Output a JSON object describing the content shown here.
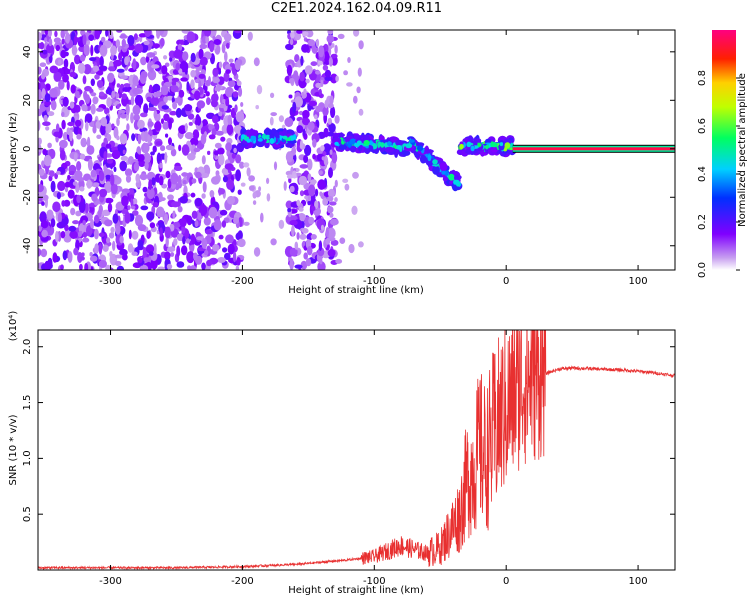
{
  "title": "C2E1.2024.162.04.09.R11",
  "chart_data": [
    {
      "type": "heatmap",
      "name": "spectrogram",
      "xlabel": "Height of straight line (km)",
      "ylabel": "Frequency (Hz)",
      "xlim": [
        -355,
        128
      ],
      "ylim": [
        -50,
        49
      ],
      "xticks": [
        -300,
        -200,
        -100,
        0,
        100
      ],
      "yticks": [
        -40,
        -20,
        0,
        20,
        40
      ],
      "colorbar": {
        "label": "Normalized spectral amplitude",
        "range": [
          0,
          1
        ],
        "ticks": [
          "0.0",
          "0.2",
          "0.4",
          "0.6",
          "0.8"
        ],
        "colormap": [
          "#ffffff",
          "#c8a0f0",
          "#8000ff",
          "#0030ff",
          "#00d0ff",
          "#00ff60",
          "#c0ff00",
          "#ffd000",
          "#ff2000",
          "#ff0080"
        ]
      },
      "features": [
        {
          "region": "noise",
          "x": [
            -355,
            -200
          ],
          "y": [
            -50,
            49
          ],
          "amplitude": 0.15
        },
        {
          "region": "noise",
          "x": [
            -165,
            -130
          ],
          "y": [
            -50,
            49
          ],
          "amplitude": 0.15
        },
        {
          "region": "signal",
          "x": [
            -200,
            -160
          ],
          "y": 4,
          "amplitude": 0.45
        },
        {
          "region": "signal",
          "x": [
            -130,
            -35
          ],
          "y": [
            3,
            -15
          ],
          "amplitude": 0.45
        },
        {
          "region": "signal",
          "x": [
            -35,
            5
          ],
          "y": 1,
          "amplitude": 0.55
        },
        {
          "region": "carrier",
          "x": [
            5,
            128
          ],
          "y": 0,
          "amplitude": 0.95
        }
      ]
    },
    {
      "type": "line",
      "name": "snr",
      "xlabel": "Height of straight line (km)",
      "ylabel": "SNR (10 * v/v)",
      "multiplier": "(x10⁴)",
      "xlim": [
        -355,
        128
      ],
      "ylim": [
        0,
        2.15
      ],
      "xticks": [
        -300,
        -200,
        -100,
        0,
        100
      ],
      "yticks": [
        0.5,
        1.0,
        1.5,
        2.0
      ],
      "ytick_labels": [
        "0.5",
        "1.0",
        "1.5",
        "2.0"
      ],
      "color": "#e83030",
      "x": [
        -355,
        -300,
        -250,
        -200,
        -180,
        -160,
        -140,
        -120,
        -100,
        -80,
        -60,
        -50,
        -40,
        -35,
        -30,
        -25,
        -20,
        -15,
        -10,
        -5,
        0,
        5,
        10,
        15,
        20,
        30,
        40,
        50,
        70,
        90,
        110,
        128
      ],
      "y": [
        0.02,
        0.02,
        0.02,
        0.03,
        0.04,
        0.05,
        0.07,
        0.09,
        0.12,
        0.22,
        0.15,
        0.2,
        0.4,
        0.5,
        0.8,
        0.9,
        1.1,
        1.0,
        1.2,
        1.35,
        1.45,
        1.55,
        1.65,
        1.7,
        1.72,
        1.76,
        1.8,
        1.81,
        1.8,
        1.79,
        1.77,
        1.74
      ]
    }
  ]
}
